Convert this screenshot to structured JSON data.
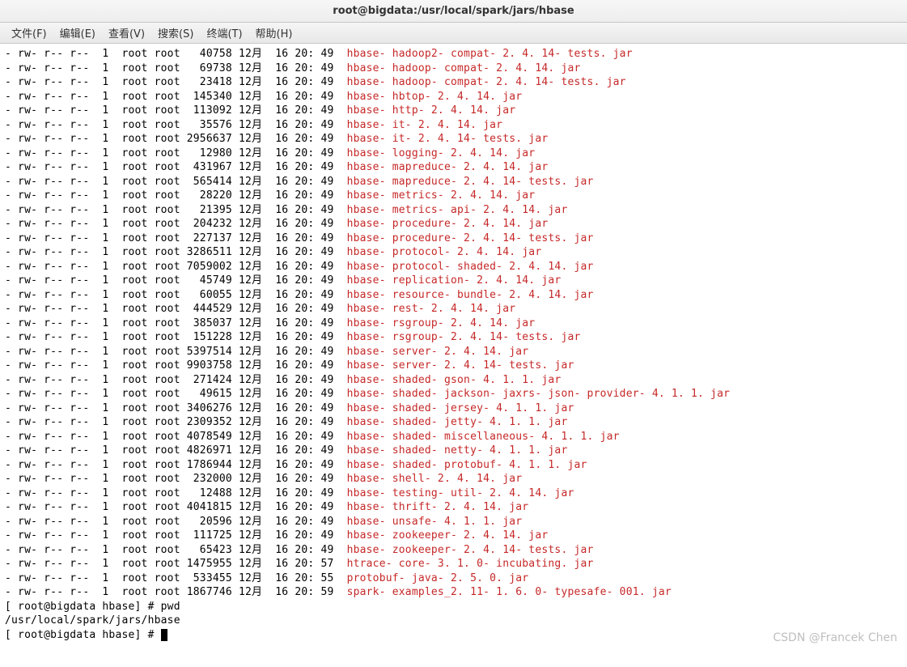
{
  "window": {
    "title": "root@bigdata:/usr/local/spark/jars/hbase"
  },
  "menu": {
    "file": "文件(F)",
    "edit": "编辑(E)",
    "view": "查看(V)",
    "search": "搜索(S)",
    "terminal": "终端(T)",
    "help": "帮助(H)"
  },
  "colors": {
    "filename": "#c62828",
    "text": "#000000",
    "background": "#ffffff"
  },
  "listing": [
    {
      "perm": "- rw- r-- r--",
      "links": "1",
      "owner": "root",
      "group": "root",
      "size": "40758",
      "month": "12月",
      "day": "16",
      "time": "20: 49",
      "name": "hbase- hadoop2- compat- 2. 4. 14- tests. jar"
    },
    {
      "perm": "- rw- r-- r--",
      "links": "1",
      "owner": "root",
      "group": "root",
      "size": "69738",
      "month": "12月",
      "day": "16",
      "time": "20: 49",
      "name": "hbase- hadoop- compat- 2. 4. 14. jar"
    },
    {
      "perm": "- rw- r-- r--",
      "links": "1",
      "owner": "root",
      "group": "root",
      "size": "23418",
      "month": "12月",
      "day": "16",
      "time": "20: 49",
      "name": "hbase- hadoop- compat- 2. 4. 14- tests. jar"
    },
    {
      "perm": "- rw- r-- r--",
      "links": "1",
      "owner": "root",
      "group": "root",
      "size": "145340",
      "month": "12月",
      "day": "16",
      "time": "20: 49",
      "name": "hbase- hbtop- 2. 4. 14. jar"
    },
    {
      "perm": "- rw- r-- r--",
      "links": "1",
      "owner": "root",
      "group": "root",
      "size": "113092",
      "month": "12月",
      "day": "16",
      "time": "20: 49",
      "name": "hbase- http- 2. 4. 14. jar"
    },
    {
      "perm": "- rw- r-- r--",
      "links": "1",
      "owner": "root",
      "group": "root",
      "size": "35576",
      "month": "12月",
      "day": "16",
      "time": "20: 49",
      "name": "hbase- it- 2. 4. 14. jar"
    },
    {
      "perm": "- rw- r-- r--",
      "links": "1",
      "owner": "root",
      "group": "root",
      "size": "2956637",
      "month": "12月",
      "day": "16",
      "time": "20: 49",
      "name": "hbase- it- 2. 4. 14- tests. jar"
    },
    {
      "perm": "- rw- r-- r--",
      "links": "1",
      "owner": "root",
      "group": "root",
      "size": "12980",
      "month": "12月",
      "day": "16",
      "time": "20: 49",
      "name": "hbase- logging- 2. 4. 14. jar"
    },
    {
      "perm": "- rw- r-- r--",
      "links": "1",
      "owner": "root",
      "group": "root",
      "size": "431967",
      "month": "12月",
      "day": "16",
      "time": "20: 49",
      "name": "hbase- mapreduce- 2. 4. 14. jar"
    },
    {
      "perm": "- rw- r-- r--",
      "links": "1",
      "owner": "root",
      "group": "root",
      "size": "565414",
      "month": "12月",
      "day": "16",
      "time": "20: 49",
      "name": "hbase- mapreduce- 2. 4. 14- tests. jar"
    },
    {
      "perm": "- rw- r-- r--",
      "links": "1",
      "owner": "root",
      "group": "root",
      "size": "28220",
      "month": "12月",
      "day": "16",
      "time": "20: 49",
      "name": "hbase- metrics- 2. 4. 14. jar"
    },
    {
      "perm": "- rw- r-- r--",
      "links": "1",
      "owner": "root",
      "group": "root",
      "size": "21395",
      "month": "12月",
      "day": "16",
      "time": "20: 49",
      "name": "hbase- metrics- api- 2. 4. 14. jar"
    },
    {
      "perm": "- rw- r-- r--",
      "links": "1",
      "owner": "root",
      "group": "root",
      "size": "204232",
      "month": "12月",
      "day": "16",
      "time": "20: 49",
      "name": "hbase- procedure- 2. 4. 14. jar"
    },
    {
      "perm": "- rw- r-- r--",
      "links": "1",
      "owner": "root",
      "group": "root",
      "size": "227137",
      "month": "12月",
      "day": "16",
      "time": "20: 49",
      "name": "hbase- procedure- 2. 4. 14- tests. jar"
    },
    {
      "perm": "- rw- r-- r--",
      "links": "1",
      "owner": "root",
      "group": "root",
      "size": "3286511",
      "month": "12月",
      "day": "16",
      "time": "20: 49",
      "name": "hbase- protocol- 2. 4. 14. jar"
    },
    {
      "perm": "- rw- r-- r--",
      "links": "1",
      "owner": "root",
      "group": "root",
      "size": "7059002",
      "month": "12月",
      "day": "16",
      "time": "20: 49",
      "name": "hbase- protocol- shaded- 2. 4. 14. jar"
    },
    {
      "perm": "- rw- r-- r--",
      "links": "1",
      "owner": "root",
      "group": "root",
      "size": "45749",
      "month": "12月",
      "day": "16",
      "time": "20: 49",
      "name": "hbase- replication- 2. 4. 14. jar"
    },
    {
      "perm": "- rw- r-- r--",
      "links": "1",
      "owner": "root",
      "group": "root",
      "size": "60055",
      "month": "12月",
      "day": "16",
      "time": "20: 49",
      "name": "hbase- resource- bundle- 2. 4. 14. jar"
    },
    {
      "perm": "- rw- r-- r--",
      "links": "1",
      "owner": "root",
      "group": "root",
      "size": "444529",
      "month": "12月",
      "day": "16",
      "time": "20: 49",
      "name": "hbase- rest- 2. 4. 14. jar"
    },
    {
      "perm": "- rw- r-- r--",
      "links": "1",
      "owner": "root",
      "group": "root",
      "size": "385037",
      "month": "12月",
      "day": "16",
      "time": "20: 49",
      "name": "hbase- rsgroup- 2. 4. 14. jar"
    },
    {
      "perm": "- rw- r-- r--",
      "links": "1",
      "owner": "root",
      "group": "root",
      "size": "151228",
      "month": "12月",
      "day": "16",
      "time": "20: 49",
      "name": "hbase- rsgroup- 2. 4. 14- tests. jar"
    },
    {
      "perm": "- rw- r-- r--",
      "links": "1",
      "owner": "root",
      "group": "root",
      "size": "5397514",
      "month": "12月",
      "day": "16",
      "time": "20: 49",
      "name": "hbase- server- 2. 4. 14. jar"
    },
    {
      "perm": "- rw- r-- r--",
      "links": "1",
      "owner": "root",
      "group": "root",
      "size": "9903758",
      "month": "12月",
      "day": "16",
      "time": "20: 49",
      "name": "hbase- server- 2. 4. 14- tests. jar"
    },
    {
      "perm": "- rw- r-- r--",
      "links": "1",
      "owner": "root",
      "group": "root",
      "size": "271424",
      "month": "12月",
      "day": "16",
      "time": "20: 49",
      "name": "hbase- shaded- gson- 4. 1. 1. jar"
    },
    {
      "perm": "- rw- r-- r--",
      "links": "1",
      "owner": "root",
      "group": "root",
      "size": "49615",
      "month": "12月",
      "day": "16",
      "time": "20: 49",
      "name": "hbase- shaded- jackson- jaxrs- json- provider- 4. 1. 1. jar"
    },
    {
      "perm": "- rw- r-- r--",
      "links": "1",
      "owner": "root",
      "group": "root",
      "size": "3406276",
      "month": "12月",
      "day": "16",
      "time": "20: 49",
      "name": "hbase- shaded- jersey- 4. 1. 1. jar"
    },
    {
      "perm": "- rw- r-- r--",
      "links": "1",
      "owner": "root",
      "group": "root",
      "size": "2309352",
      "month": "12月",
      "day": "16",
      "time": "20: 49",
      "name": "hbase- shaded- jetty- 4. 1. 1. jar"
    },
    {
      "perm": "- rw- r-- r--",
      "links": "1",
      "owner": "root",
      "group": "root",
      "size": "4078549",
      "month": "12月",
      "day": "16",
      "time": "20: 49",
      "name": "hbase- shaded- miscellaneous- 4. 1. 1. jar"
    },
    {
      "perm": "- rw- r-- r--",
      "links": "1",
      "owner": "root",
      "group": "root",
      "size": "4826971",
      "month": "12月",
      "day": "16",
      "time": "20: 49",
      "name": "hbase- shaded- netty- 4. 1. 1. jar"
    },
    {
      "perm": "- rw- r-- r--",
      "links": "1",
      "owner": "root",
      "group": "root",
      "size": "1786944",
      "month": "12月",
      "day": "16",
      "time": "20: 49",
      "name": "hbase- shaded- protobuf- 4. 1. 1. jar"
    },
    {
      "perm": "- rw- r-- r--",
      "links": "1",
      "owner": "root",
      "group": "root",
      "size": "232000",
      "month": "12月",
      "day": "16",
      "time": "20: 49",
      "name": "hbase- shell- 2. 4. 14. jar"
    },
    {
      "perm": "- rw- r-- r--",
      "links": "1",
      "owner": "root",
      "group": "root",
      "size": "12488",
      "month": "12月",
      "day": "16",
      "time": "20: 49",
      "name": "hbase- testing- util- 2. 4. 14. jar"
    },
    {
      "perm": "- rw- r-- r--",
      "links": "1",
      "owner": "root",
      "group": "root",
      "size": "4041815",
      "month": "12月",
      "day": "16",
      "time": "20: 49",
      "name": "hbase- thrift- 2. 4. 14. jar"
    },
    {
      "perm": "- rw- r-- r--",
      "links": "1",
      "owner": "root",
      "group": "root",
      "size": "20596",
      "month": "12月",
      "day": "16",
      "time": "20: 49",
      "name": "hbase- unsafe- 4. 1. 1. jar"
    },
    {
      "perm": "- rw- r-- r--",
      "links": "1",
      "owner": "root",
      "group": "root",
      "size": "111725",
      "month": "12月",
      "day": "16",
      "time": "20: 49",
      "name": "hbase- zookeeper- 2. 4. 14. jar"
    },
    {
      "perm": "- rw- r-- r--",
      "links": "1",
      "owner": "root",
      "group": "root",
      "size": "65423",
      "month": "12月",
      "day": "16",
      "time": "20: 49",
      "name": "hbase- zookeeper- 2. 4. 14- tests. jar"
    },
    {
      "perm": "- rw- r-- r--",
      "links": "1",
      "owner": "root",
      "group": "root",
      "size": "1475955",
      "month": "12月",
      "day": "16",
      "time": "20: 57",
      "name": "htrace- core- 3. 1. 0- incubating. jar"
    },
    {
      "perm": "- rw- r-- r--",
      "links": "1",
      "owner": "root",
      "group": "root",
      "size": "533455",
      "month": "12月",
      "day": "16",
      "time": "20: 55",
      "name": "protobuf- java- 2. 5. 0. jar"
    },
    {
      "perm": "- rw- r-- r--",
      "links": "1",
      "owner": "root",
      "group": "root",
      "size": "1867746",
      "month": "12月",
      "day": "16",
      "time": "20: 59",
      "name": "spark- examples_2. 11- 1. 6. 0- typesafe- 001. jar"
    }
  ],
  "prompt": {
    "line1_prefix": "[ root@bigdata hbase] # ",
    "line1_cmd": "pwd",
    "pwd_output": "/usr/local/spark/jars/hbase",
    "line3_prefix": "[ root@bigdata hbase] # "
  },
  "watermark": "CSDN @Francek Chen"
}
